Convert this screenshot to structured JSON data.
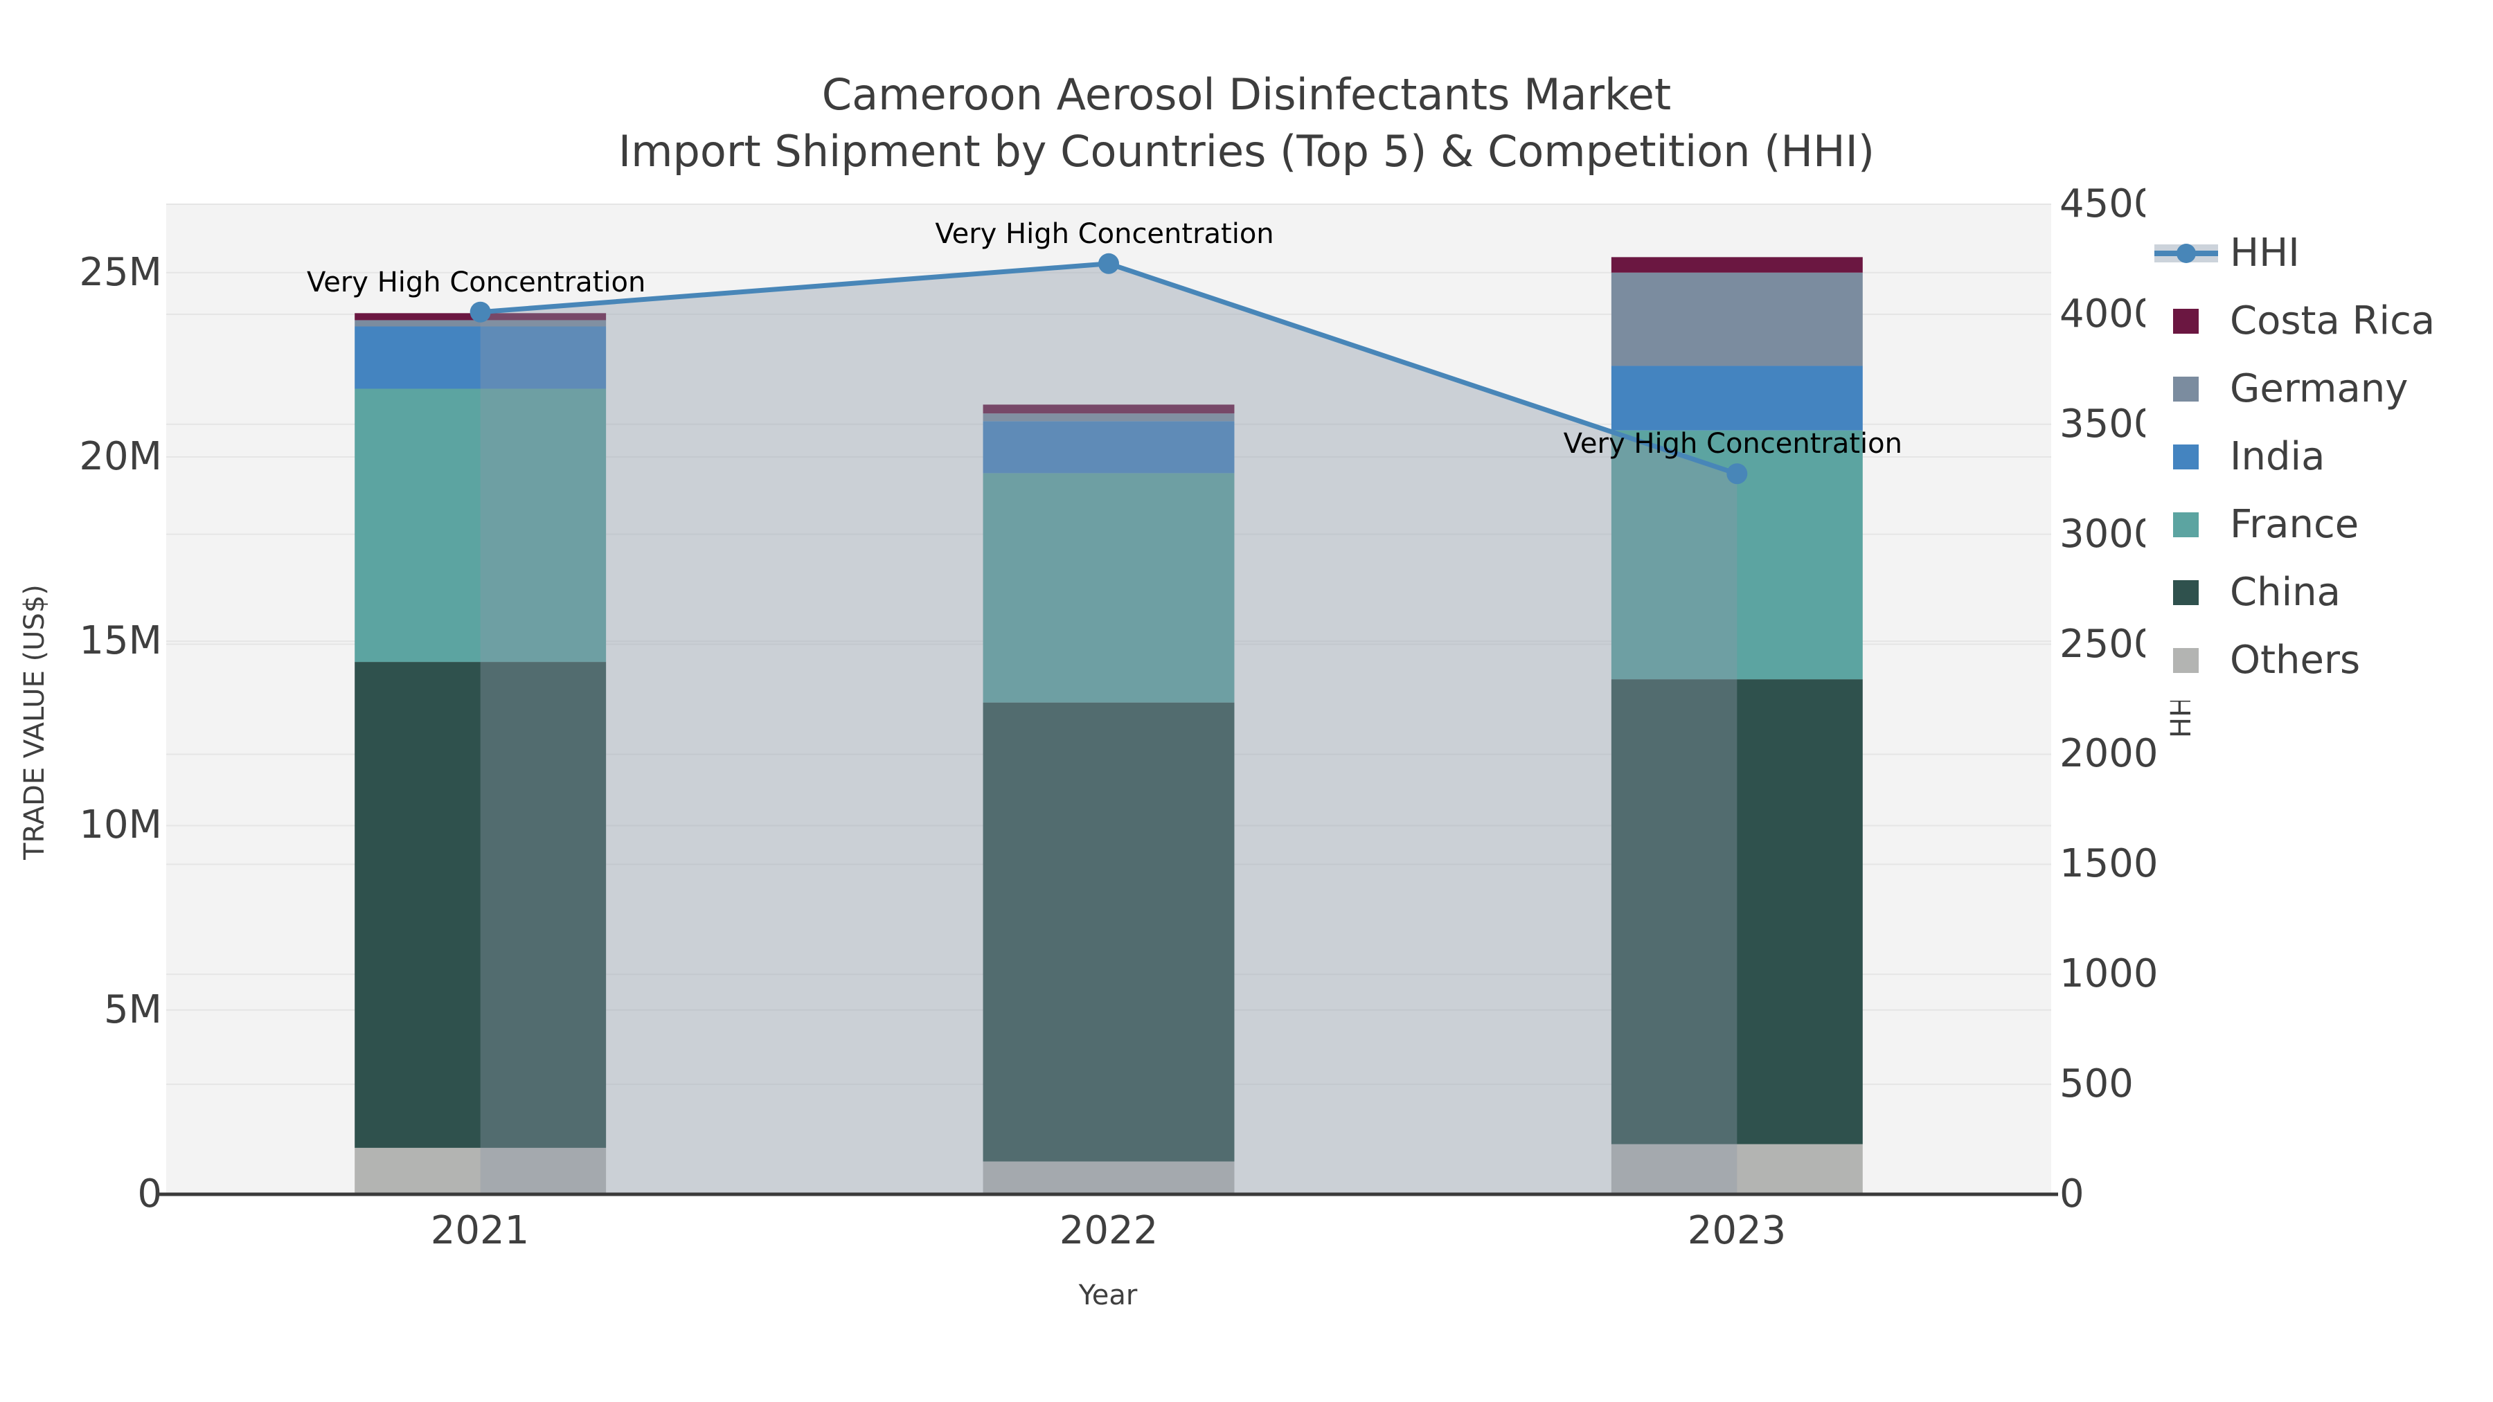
{
  "title": {
    "line1": "Cameroon Aerosol Disinfectants Market",
    "line2": "Import Shipment by Countries (Top 5) & Competition (HHI)"
  },
  "axes": {
    "left": {
      "title": "TRADE VALUE (US$)",
      "tick_labels": [
        "0",
        "5M",
        "10M",
        "15M",
        "20M",
        "25M"
      ]
    },
    "right": {
      "title": "HHI",
      "tick_labels": [
        "0",
        "500",
        "1000",
        "1500",
        "2000",
        "2500",
        "3000",
        "3500",
        "4000",
        "4500"
      ]
    },
    "x": {
      "title": "Year",
      "tick_labels": [
        "2021",
        "2022",
        "2023"
      ]
    }
  },
  "legend": {
    "hhi_label": "HHI",
    "items": [
      {
        "label": "Costa Rica",
        "color": "#6b1741"
      },
      {
        "label": "Germany",
        "color": "#7b8c9f"
      },
      {
        "label": "India",
        "color": "#4484c0"
      },
      {
        "label": "France",
        "color": "#5ca4a1"
      },
      {
        "label": "China",
        "color": "#2f514d"
      },
      {
        "label": "Others",
        "color": "#b3b4b2"
      }
    ]
  },
  "annotations": [
    "Very High Concentration",
    "Very High Concentration",
    "Very High Concentration"
  ],
  "colors": {
    "hhi_line": "#4886b8",
    "area_fill": "rgba(140,153,168,0.38)",
    "legend_band": "#ccd3db",
    "plot_bg": "#f3f3f3",
    "gridline": "#e5e5e5",
    "axis_line": "#3a3a3a"
  },
  "chart_data": {
    "type": [
      "bar",
      "line"
    ],
    "title": "Cameroon Aerosol Disinfectants Market — Import Shipment by Countries (Top 5) & Competition (HHI)",
    "categories": [
      "2021",
      "2022",
      "2023"
    ],
    "bar_unit": "US$ millions",
    "stack_order_bottom_to_top": [
      "Others",
      "China",
      "France",
      "India",
      "Germany",
      "Costa Rica"
    ],
    "series": [
      {
        "name": "Others",
        "color": "#b3b4b2",
        "values": [
          1.26,
          0.89,
          1.36
        ]
      },
      {
        "name": "China",
        "color": "#2f514d",
        "values": [
          13.18,
          12.45,
          12.61
        ]
      },
      {
        "name": "France",
        "color": "#5ca4a1",
        "values": [
          7.41,
          6.22,
          6.75
        ]
      },
      {
        "name": "India",
        "color": "#4484c0",
        "values": [
          1.69,
          1.41,
          1.75
        ]
      },
      {
        "name": "Germany",
        "color": "#7b8c9f",
        "values": [
          0.17,
          0.21,
          2.53
        ]
      },
      {
        "name": "Costa Rica",
        "color": "#6b1741",
        "values": [
          0.19,
          0.24,
          0.42
        ]
      }
    ],
    "line_series": {
      "name": "HHI",
      "axis": "right",
      "values": [
        4010,
        4230,
        3275
      ],
      "area_fill": true
    },
    "left_axis_ticks_millions": [
      0,
      5,
      10,
      15,
      20,
      25
    ],
    "right_axis_ticks": [
      0,
      500,
      1000,
      1500,
      2000,
      2500,
      3000,
      3500,
      4000,
      4500
    ],
    "ylim_left_millions": [
      0,
      26.85
    ],
    "ylim_right": [
      0,
      4500
    ],
    "xlabel": "Year",
    "ylabel_left": "TRADE VALUE (US$)",
    "ylabel_right": "HHI",
    "grid": true,
    "legend_position": "right"
  }
}
